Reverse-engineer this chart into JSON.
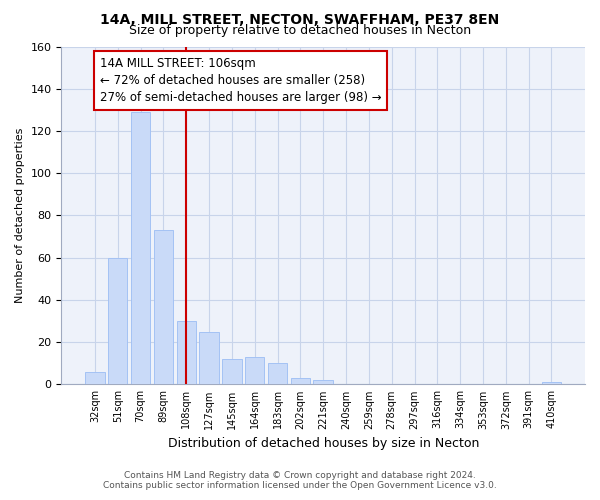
{
  "title": "14A, MILL STREET, NECTON, SWAFFHAM, PE37 8EN",
  "subtitle": "Size of property relative to detached houses in Necton",
  "xlabel": "Distribution of detached houses by size in Necton",
  "ylabel": "Number of detached properties",
  "bar_labels": [
    "32sqm",
    "51sqm",
    "70sqm",
    "89sqm",
    "108sqm",
    "127sqm",
    "145sqm",
    "164sqm",
    "183sqm",
    "202sqm",
    "221sqm",
    "240sqm",
    "259sqm",
    "278sqm",
    "297sqm",
    "316sqm",
    "334sqm",
    "353sqm",
    "372sqm",
    "391sqm",
    "410sqm"
  ],
  "bar_values": [
    6,
    60,
    129,
    73,
    30,
    25,
    12,
    13,
    10,
    3,
    2,
    0,
    0,
    0,
    0,
    0,
    0,
    0,
    0,
    0,
    1
  ],
  "bar_color": "#c9daf8",
  "bar_edge_color": "#a4c2f4",
  "vline_x": 4,
  "vline_color": "#cc0000",
  "ylim": [
    0,
    160
  ],
  "yticks": [
    0,
    20,
    40,
    60,
    80,
    100,
    120,
    140,
    160
  ],
  "annotation_line1": "14A MILL STREET: 106sqm",
  "annotation_line2": "← 72% of detached houses are smaller (258)",
  "annotation_line3": "27% of semi-detached houses are larger (98) →",
  "footer_line1": "Contains HM Land Registry data © Crown copyright and database right 2024.",
  "footer_line2": "Contains public sector information licensed under the Open Government Licence v3.0.",
  "bg_color": "#ffffff",
  "plot_bg_color": "#eef2fa",
  "grid_color": "#c8d4ea",
  "title_fontsize": 10,
  "subtitle_fontsize": 9,
  "annotation_box_edge": "#cc0000",
  "annotation_fontsize": 8.5,
  "ylabel_fontsize": 8,
  "xlabel_fontsize": 9
}
